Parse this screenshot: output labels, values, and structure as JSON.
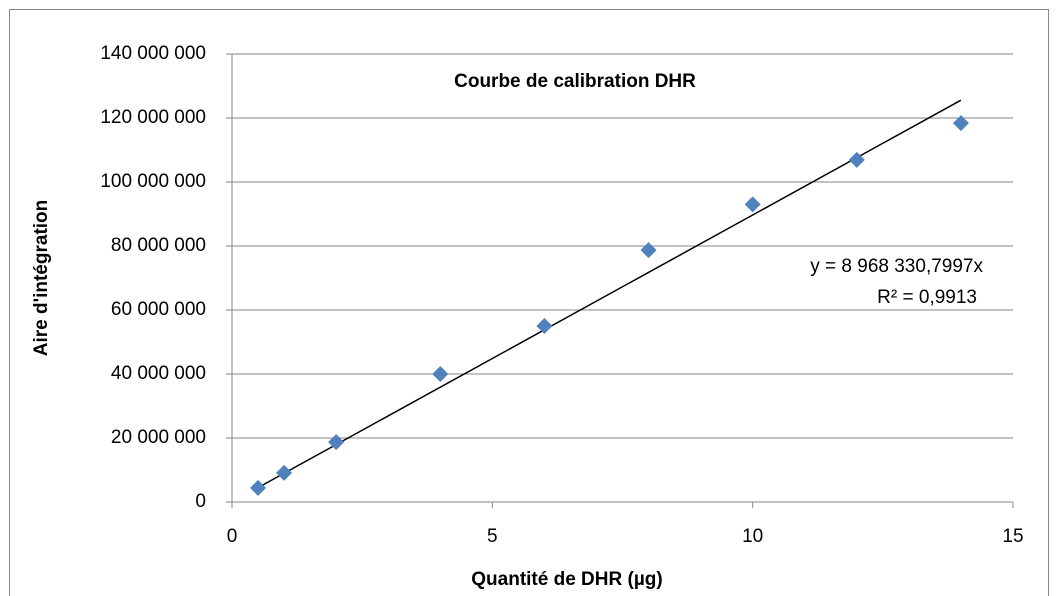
{
  "chart_data": {
    "type": "scatter",
    "title": "Courbe de calibration DHR",
    "xlabel": "Quantité de DHR (µg)",
    "ylabel": "Aire d'intégration",
    "x": [
      0.5,
      1,
      2,
      4,
      6,
      8,
      10,
      12,
      14
    ],
    "series": [
      {
        "color": "#4f81bd",
        "values": [
          4400000,
          9100000,
          18700000,
          40000000,
          55000000,
          78700000,
          93000000,
          106900000,
          118400000
        ]
      }
    ],
    "xlim": [
      0,
      15
    ],
    "xticks": [
      0,
      5,
      10,
      15
    ],
    "ylim": [
      0,
      140000000
    ],
    "yticks": [
      {
        "value": 0,
        "label": "0"
      },
      {
        "value": 20000000,
        "label": "20 000 000"
      },
      {
        "value": 40000000,
        "label": "40 000 000"
      },
      {
        "value": 60000000,
        "label": "60 000 000"
      },
      {
        "value": 80000000,
        "label": "80 000 000"
      },
      {
        "value": 100000000,
        "label": "100 000 000"
      },
      {
        "value": 120000000,
        "label": "120 000 000"
      },
      {
        "value": 140000000,
        "label": "140 000 000"
      }
    ],
    "grid": true,
    "trendline": {
      "slope": 8968330.7997,
      "color": "#000000",
      "label": "y = 8 968 330,7997x",
      "r2_label": "R² = 0,9913"
    }
  }
}
